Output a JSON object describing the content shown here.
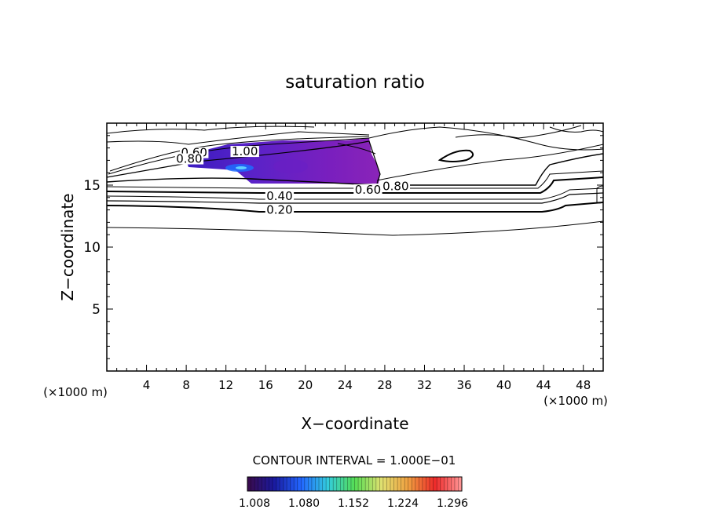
{
  "chart_data": {
    "type": "contour",
    "title": "saturation ratio",
    "xlabel": "X−coordinate",
    "ylabel": "Z−coordinate",
    "x_unit_left": "(×1000 m)",
    "x_unit_right": "(×1000 m)",
    "xlim": [
      0,
      50
    ],
    "ylim": [
      0,
      20
    ],
    "x_ticks": [
      "4",
      "8",
      "12",
      "16",
      "20",
      "24",
      "28",
      "32",
      "36",
      "40",
      "44",
      "48"
    ],
    "y_ticks": [
      "5",
      "10",
      "15"
    ],
    "contour_interval_text": "CONTOUR INTERVAL = 1.000E−01",
    "contour_labels": [
      {
        "text": "0.60",
        "x": 8.8,
        "z": 17.3
      },
      {
        "text": "0.80",
        "x": 8.3,
        "z": 16.8
      },
      {
        "text": "1.00",
        "x": 13.9,
        "z": 17.4
      },
      {
        "text": "0.40",
        "x": 17.4,
        "z": 13.8
      },
      {
        "text": "0.20",
        "x": 17.4,
        "z": 12.7
      },
      {
        "text": "0.60",
        "x": 26.3,
        "z": 14.3
      },
      {
        "text": "0.80",
        "x": 29.1,
        "z": 14.6
      }
    ],
    "colorbar": {
      "ticks": [
        "1.008",
        "1.080",
        "1.152",
        "1.224",
        "1.296"
      ],
      "min": 1.008,
      "max": 1.32,
      "colors": [
        "#3a0a4a",
        "#1a1aa0",
        "#2266ff",
        "#33ccdd",
        "#55dd55",
        "#e0e070",
        "#f0a040",
        "#ee2a2a",
        "#ff9999"
      ]
    }
  }
}
